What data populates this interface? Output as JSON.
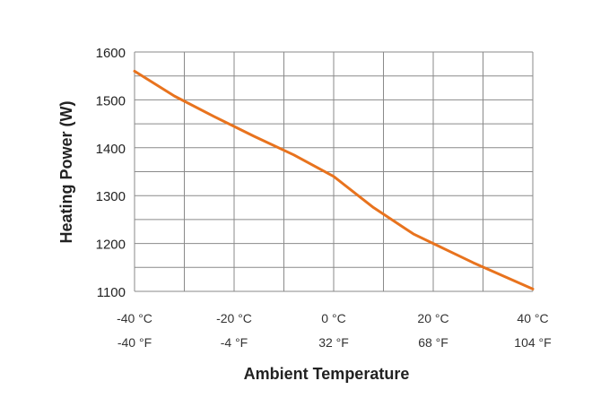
{
  "chart_data": {
    "type": "line",
    "xlabel": "Ambient Temperature",
    "ylabel": "Heating Power (W)",
    "x_unit_primary": "°C",
    "x_unit_secondary": "°F",
    "xlim": [
      -40,
      40
    ],
    "ylim": [
      1100,
      1600
    ],
    "y_ticks": [
      1100,
      1200,
      1300,
      1400,
      1500,
      1600
    ],
    "y_tick_labels": [
      "1100",
      "1200",
      "1300",
      "1400",
      "1500",
      "1600"
    ],
    "x_ticks": [
      -40,
      -20,
      0,
      20,
      40
    ],
    "x_tick_labels_c": [
      "-40 °C",
      "-20 °C",
      "0 °C",
      "20 °C",
      "40 °C"
    ],
    "x_tick_labels_f": [
      "-40 °F",
      "-4 °F",
      "32 °F",
      "68 °F",
      "104 °F"
    ],
    "grid": true,
    "series": [
      {
        "color": "#e8731e",
        "x": [
          -40,
          -32,
          -24,
          -16,
          -8,
          0,
          8,
          16,
          20,
          28,
          40
        ],
        "y": [
          1560,
          1508,
          1465,
          1424,
          1385,
          1340,
          1275,
          1220,
          1200,
          1160,
          1105
        ]
      }
    ]
  }
}
